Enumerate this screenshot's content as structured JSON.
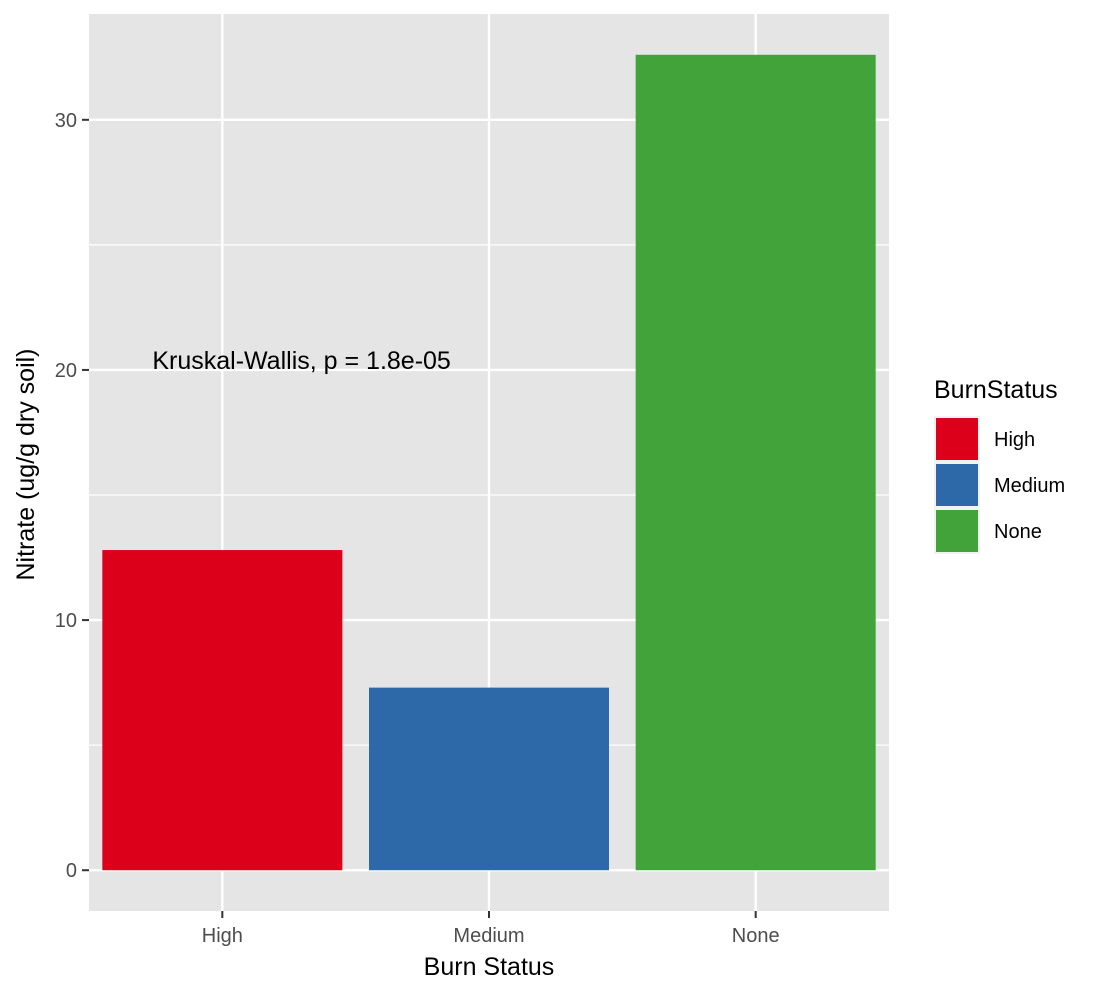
{
  "chart_data": {
    "type": "bar",
    "categories": [
      "High",
      "Medium",
      "None"
    ],
    "values": [
      12.8,
      7.3,
      32.6
    ],
    "colors": [
      "#DC001A",
      "#2D69A9",
      "#42A33B"
    ],
    "xlabel": "Burn Status",
    "ylabel": "Nitrate (ug/g dry soil)",
    "ylim": [
      -1.63,
      34.23
    ],
    "yticks": [
      0,
      10,
      20,
      30
    ],
    "grid": true,
    "background": "#E5E5E5",
    "legend": {
      "title": "BurnStatus",
      "position": "right",
      "entries": [
        "High",
        "Medium",
        "None"
      ]
    },
    "annotation": {
      "text": "Kruskal-Wallis, p = 1.8e-05",
      "x": "High",
      "y": 20.4
    }
  }
}
